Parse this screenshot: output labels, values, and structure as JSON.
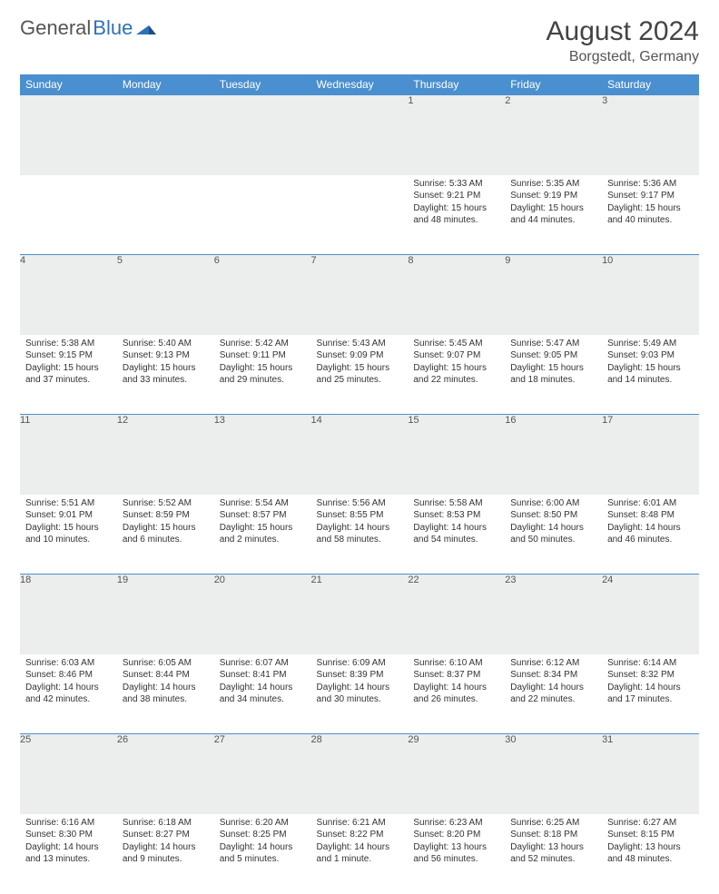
{
  "brand": {
    "part1": "General",
    "part2": "Blue"
  },
  "title": "August 2024",
  "location": "Borgstedt, Germany",
  "colors": {
    "header_bg": "#4a8fcf",
    "header_text": "#ffffff",
    "daynum_bg": "#eceded",
    "rule": "#4a8fcf",
    "brand_gray": "#555555",
    "brand_blue": "#2e72b6"
  },
  "weekdays": [
    "Sunday",
    "Monday",
    "Tuesday",
    "Wednesday",
    "Thursday",
    "Friday",
    "Saturday"
  ],
  "weeks": [
    [
      null,
      null,
      null,
      null,
      {
        "n": "1",
        "sr": "5:33 AM",
        "ss": "9:21 PM",
        "dl": "15 hours and 48 minutes."
      },
      {
        "n": "2",
        "sr": "5:35 AM",
        "ss": "9:19 PM",
        "dl": "15 hours and 44 minutes."
      },
      {
        "n": "3",
        "sr": "5:36 AM",
        "ss": "9:17 PM",
        "dl": "15 hours and 40 minutes."
      }
    ],
    [
      {
        "n": "4",
        "sr": "5:38 AM",
        "ss": "9:15 PM",
        "dl": "15 hours and 37 minutes."
      },
      {
        "n": "5",
        "sr": "5:40 AM",
        "ss": "9:13 PM",
        "dl": "15 hours and 33 minutes."
      },
      {
        "n": "6",
        "sr": "5:42 AM",
        "ss": "9:11 PM",
        "dl": "15 hours and 29 minutes."
      },
      {
        "n": "7",
        "sr": "5:43 AM",
        "ss": "9:09 PM",
        "dl": "15 hours and 25 minutes."
      },
      {
        "n": "8",
        "sr": "5:45 AM",
        "ss": "9:07 PM",
        "dl": "15 hours and 22 minutes."
      },
      {
        "n": "9",
        "sr": "5:47 AM",
        "ss": "9:05 PM",
        "dl": "15 hours and 18 minutes."
      },
      {
        "n": "10",
        "sr": "5:49 AM",
        "ss": "9:03 PM",
        "dl": "15 hours and 14 minutes."
      }
    ],
    [
      {
        "n": "11",
        "sr": "5:51 AM",
        "ss": "9:01 PM",
        "dl": "15 hours and 10 minutes."
      },
      {
        "n": "12",
        "sr": "5:52 AM",
        "ss": "8:59 PM",
        "dl": "15 hours and 6 minutes."
      },
      {
        "n": "13",
        "sr": "5:54 AM",
        "ss": "8:57 PM",
        "dl": "15 hours and 2 minutes."
      },
      {
        "n": "14",
        "sr": "5:56 AM",
        "ss": "8:55 PM",
        "dl": "14 hours and 58 minutes."
      },
      {
        "n": "15",
        "sr": "5:58 AM",
        "ss": "8:53 PM",
        "dl": "14 hours and 54 minutes."
      },
      {
        "n": "16",
        "sr": "6:00 AM",
        "ss": "8:50 PM",
        "dl": "14 hours and 50 minutes."
      },
      {
        "n": "17",
        "sr": "6:01 AM",
        "ss": "8:48 PM",
        "dl": "14 hours and 46 minutes."
      }
    ],
    [
      {
        "n": "18",
        "sr": "6:03 AM",
        "ss": "8:46 PM",
        "dl": "14 hours and 42 minutes."
      },
      {
        "n": "19",
        "sr": "6:05 AM",
        "ss": "8:44 PM",
        "dl": "14 hours and 38 minutes."
      },
      {
        "n": "20",
        "sr": "6:07 AM",
        "ss": "8:41 PM",
        "dl": "14 hours and 34 minutes."
      },
      {
        "n": "21",
        "sr": "6:09 AM",
        "ss": "8:39 PM",
        "dl": "14 hours and 30 minutes."
      },
      {
        "n": "22",
        "sr": "6:10 AM",
        "ss": "8:37 PM",
        "dl": "14 hours and 26 minutes."
      },
      {
        "n": "23",
        "sr": "6:12 AM",
        "ss": "8:34 PM",
        "dl": "14 hours and 22 minutes."
      },
      {
        "n": "24",
        "sr": "6:14 AM",
        "ss": "8:32 PM",
        "dl": "14 hours and 17 minutes."
      }
    ],
    [
      {
        "n": "25",
        "sr": "6:16 AM",
        "ss": "8:30 PM",
        "dl": "14 hours and 13 minutes."
      },
      {
        "n": "26",
        "sr": "6:18 AM",
        "ss": "8:27 PM",
        "dl": "14 hours and 9 minutes."
      },
      {
        "n": "27",
        "sr": "6:20 AM",
        "ss": "8:25 PM",
        "dl": "14 hours and 5 minutes."
      },
      {
        "n": "28",
        "sr": "6:21 AM",
        "ss": "8:22 PM",
        "dl": "14 hours and 1 minute."
      },
      {
        "n": "29",
        "sr": "6:23 AM",
        "ss": "8:20 PM",
        "dl": "13 hours and 56 minutes."
      },
      {
        "n": "30",
        "sr": "6:25 AM",
        "ss": "8:18 PM",
        "dl": "13 hours and 52 minutes."
      },
      {
        "n": "31",
        "sr": "6:27 AM",
        "ss": "8:15 PM",
        "dl": "13 hours and 48 minutes."
      }
    ]
  ],
  "labels": {
    "sunrise": "Sunrise:",
    "sunset": "Sunset:",
    "daylight": "Daylight:"
  }
}
